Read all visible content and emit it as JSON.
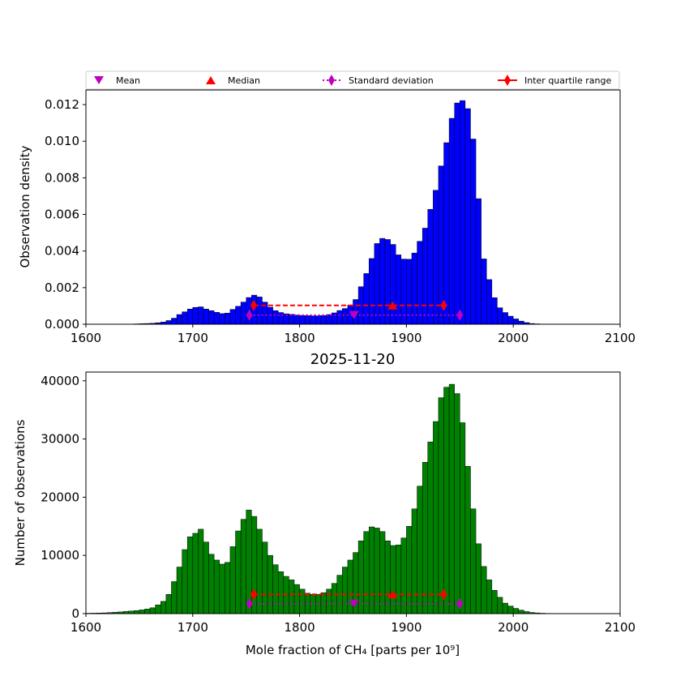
{
  "legend": {
    "mean": "Mean",
    "median": "Median",
    "std": "Standard deviation",
    "iqr": "Inter quartile range"
  },
  "colors": {
    "top_bars": "#0000ff",
    "bottom_bars": "#008000",
    "mean": "#bf00bf",
    "median": "#ff0000",
    "std": "#bf00bf",
    "iqr": "#ff0000"
  },
  "chart_data": [
    {
      "type": "bar",
      "panel": "top",
      "title": "",
      "xlabel": "",
      "ylabel": "Observation density",
      "xlim": [
        1600,
        2100
      ],
      "ylim": [
        0,
        0.0128
      ],
      "xticks": [
        1600,
        1700,
        1800,
        1900,
        2000,
        2100
      ],
      "xtick_labels": [
        "1600",
        "1700",
        "1800",
        "1900",
        "2000",
        "2100"
      ],
      "yticks": [
        0,
        0.002,
        0.004,
        0.006,
        0.008,
        0.01,
        0.012
      ],
      "ytick_labels": [
        "0.000",
        "0.002",
        "0.004",
        "0.006",
        "0.008",
        "0.010",
        "0.012"
      ],
      "bin_start": 1600,
      "bin_width": 5,
      "values": [
        0,
        0,
        0,
        0,
        0,
        0,
        0,
        0,
        1e-05,
        2e-05,
        3e-05,
        4e-05,
        5e-05,
        8e-05,
        0.00012,
        0.0002,
        0.00033,
        0.00053,
        0.00068,
        0.00083,
        0.00092,
        0.00095,
        0.00083,
        0.00074,
        0.00065,
        0.00058,
        0.00061,
        0.00081,
        0.00098,
        0.00121,
        0.00146,
        0.00159,
        0.00149,
        0.00121,
        0.00093,
        0.00074,
        0.00064,
        0.00057,
        0.00054,
        0.0005,
        0.00048,
        0.00047,
        0.00046,
        0.00046,
        0.00048,
        0.00053,
        0.00062,
        0.00075,
        0.00086,
        0.00104,
        0.00135,
        0.00205,
        0.00277,
        0.00359,
        0.00441,
        0.00469,
        0.00463,
        0.00436,
        0.00379,
        0.00356,
        0.00355,
        0.00389,
        0.00453,
        0.00525,
        0.00628,
        0.00732,
        0.00865,
        0.00992,
        0.01125,
        0.01209,
        0.01222,
        0.01178,
        0.01012,
        0.00686,
        0.00357,
        0.00244,
        0.00145,
        0.0009,
        0.00064,
        0.00044,
        0.00029,
        0.00017,
        9e-05,
        4e-05,
        2e-05,
        1e-05,
        0,
        0,
        0,
        0,
        0,
        0,
        0,
        0,
        0,
        0,
        0,
        0,
        0,
        0
      ],
      "stats": {
        "mean": 1851,
        "median": 1887,
        "std_low": 1753,
        "std_high": 1950,
        "iqr_low": 1757,
        "iqr_high": 1935,
        "std_y": 0.0005,
        "iqr_y": 0.00103
      }
    },
    {
      "type": "bar",
      "panel": "bottom",
      "title": "2025-11-20",
      "xlabel": "Mole fraction of CH₄ [parts per 10⁹]",
      "ylabel": "Number of observations",
      "xlim": [
        1600,
        2100
      ],
      "ylim": [
        0,
        41500
      ],
      "xticks": [
        1600,
        1700,
        1800,
        1900,
        2000,
        2100
      ],
      "xtick_labels": [
        "1600",
        "1700",
        "1800",
        "1900",
        "2000",
        "2100"
      ],
      "yticks": [
        0,
        10000,
        20000,
        30000,
        40000
      ],
      "ytick_labels": [
        "0",
        "10000",
        "20000",
        "30000",
        "40000"
      ],
      "bin_start": 1600,
      "bin_width": 5,
      "values": [
        60,
        80,
        100,
        130,
        180,
        230,
        290,
        370,
        440,
        520,
        640,
        790,
        1000,
        1500,
        2100,
        3300,
        5500,
        8000,
        11000,
        13200,
        13800,
        14500,
        12300,
        10200,
        9200,
        8500,
        8800,
        11500,
        14200,
        16200,
        17800,
        16700,
        14500,
        12300,
        10000,
        8400,
        7200,
        6400,
        5800,
        5000,
        4200,
        3500,
        3300,
        3300,
        3600,
        4200,
        5200,
        6600,
        8000,
        9200,
        10500,
        12500,
        14100,
        14900,
        14700,
        14100,
        12500,
        11700,
        11800,
        13000,
        15000,
        18000,
        21900,
        26000,
        29500,
        33000,
        37100,
        38900,
        39400,
        37800,
        32800,
        25300,
        18000,
        12000,
        8100,
        5800,
        4000,
        2800,
        1800,
        1300,
        900,
        600,
        350,
        200,
        120,
        70,
        40,
        20,
        10,
        5,
        0,
        0,
        0,
        0,
        0,
        0,
        0,
        0,
        0,
        0
      ],
      "stats": {
        "mean": 1851,
        "median": 1887,
        "std_low": 1753,
        "std_high": 1950,
        "iqr_low": 1757,
        "iqr_high": 1935,
        "std_y": 1700,
        "iqr_y": 3300
      }
    }
  ]
}
